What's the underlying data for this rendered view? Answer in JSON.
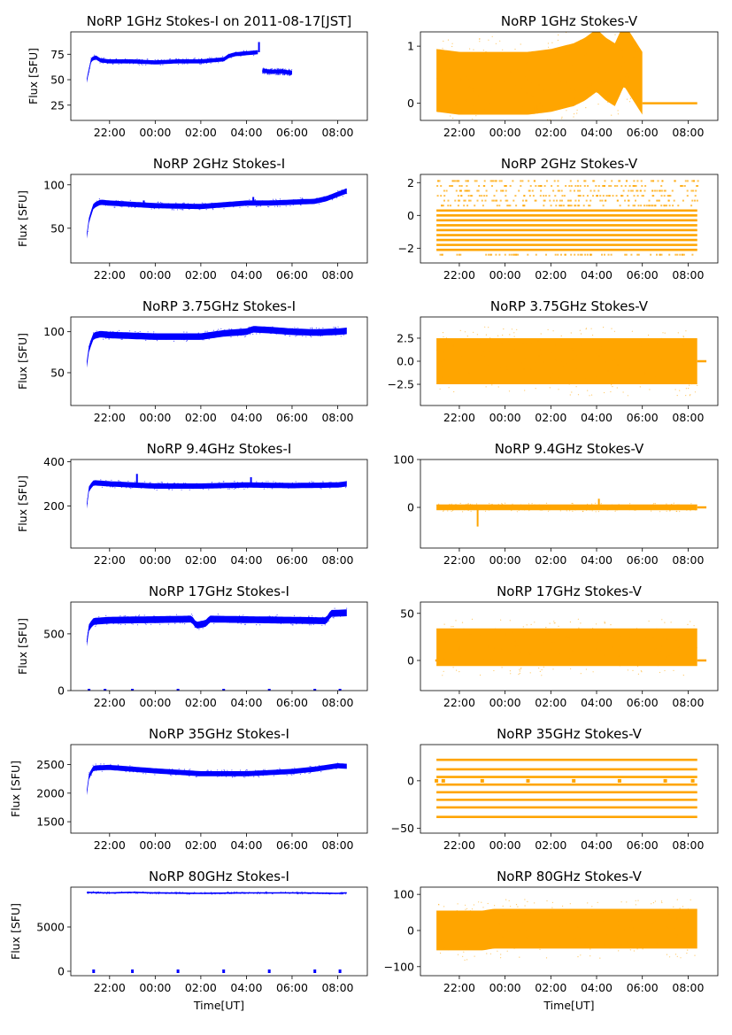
{
  "figure": {
    "x_tick_labels": [
      "22:00",
      "00:00",
      "02:00",
      "04:00",
      "06:00",
      "08:00"
    ],
    "x_tick_hours": [
      22,
      24,
      26,
      28,
      30,
      32
    ],
    "x_range_hours": [
      20.3,
      33.3
    ],
    "data_range_hours": [
      21.0,
      32.4
    ],
    "xlabel": "Time[UT]",
    "ylabel": "Flux [SFU]",
    "colors": {
      "stokes_i": "#0000ff",
      "stokes_v": "#ffa500"
    }
  },
  "chart_data": [
    {
      "type": "scatter",
      "panel": "1ghz-stokes-i",
      "title": "NoRP 1GHz Stokes-I on 2011-08-17[JST]",
      "ylabel": "Flux [SFU]",
      "xlabel": "",
      "ylim": [
        10,
        97
      ],
      "yticks": [
        25,
        50,
        75
      ],
      "ytick_labels": [
        "25",
        "50",
        "75"
      ],
      "series": [
        {
          "name": "trace",
          "x": [
            21.0,
            21.1,
            21.2,
            21.4,
            21.6,
            22,
            23,
            24,
            25,
            26,
            26.5,
            27,
            27.2,
            27.5,
            28,
            28.5
          ],
          "y": [
            49,
            60,
            70,
            72,
            69,
            68,
            68,
            67,
            68,
            68,
            69,
            70,
            73,
            75,
            76,
            77
          ],
          "band": 2
        },
        {
          "name": "trace-late",
          "x": [
            28.7,
            29,
            29.5,
            30
          ],
          "y": [
            59,
            58,
            58,
            57
          ],
          "band": 2
        }
      ],
      "spikes": [
        {
          "x": 28.55,
          "y": 87
        }
      ]
    },
    {
      "type": "scatter",
      "panel": "1ghz-stokes-v",
      "title": "NoRP 1GHz Stokes-V",
      "ylabel": "",
      "xlabel": "",
      "ylim": [
        -0.3,
        1.25
      ],
      "yticks": [
        0,
        1
      ],
      "ytick_labels": [
        "0",
        "1"
      ],
      "series": [
        {
          "name": "trace",
          "x": [
            21.0,
            22,
            23,
            24,
            25,
            26,
            27,
            27.5,
            28,
            28.4,
            28.8,
            29.2,
            29.6,
            30
          ],
          "y": [
            0.4,
            0.35,
            0.35,
            0.35,
            0.35,
            0.4,
            0.5,
            0.6,
            0.75,
            0.6,
            0.5,
            0.85,
            0.6,
            0.35
          ],
          "band": 0.55
        }
      ],
      "flat": [
        {
          "x0": 30.0,
          "x1": 32.4,
          "y": 0.0
        }
      ]
    },
    {
      "type": "scatter",
      "panel": "2ghz-stokes-i",
      "title": "NoRP 2GHz Stokes-I",
      "ylabel": "Flux [SFU]",
      "xlabel": "",
      "ylim": [
        10,
        112
      ],
      "yticks": [
        50,
        100
      ],
      "ytick_labels": [
        "50",
        "100"
      ],
      "series": [
        {
          "name": "trace",
          "x": [
            21.0,
            21.1,
            21.3,
            21.6,
            22,
            24,
            26,
            27,
            28,
            29,
            30,
            31,
            31.5,
            32,
            32.4
          ],
          "y": [
            41,
            60,
            76,
            80,
            79,
            76,
            75,
            77,
            79,
            79,
            80,
            81,
            84,
            89,
            93
          ],
          "band": 3
        }
      ],
      "spikes": [
        {
          "x": 28.3,
          "y": 86
        },
        {
          "x": 23.5,
          "y": 82
        }
      ]
    },
    {
      "type": "scatter",
      "panel": "2ghz-stokes-v",
      "title": "NoRP 2GHz Stokes-V",
      "ylabel": "",
      "xlabel": "",
      "ylim": [
        -2.9,
        2.5
      ],
      "yticks": [
        -2,
        0,
        2
      ],
      "ytick_labels": [
        "−2",
        "0",
        "2"
      ],
      "levels": [
        0.3,
        0.0,
        -0.3,
        -0.6,
        -0.9,
        -1.2,
        -1.5,
        -1.8,
        -2.1
      ],
      "sparse_levels": [
        -2.4,
        0.6,
        0.9,
        1.2,
        1.5,
        1.8,
        2.1
      ]
    },
    {
      "type": "scatter",
      "panel": "3-75ghz-stokes-i",
      "title": "NoRP 3.75GHz Stokes-I",
      "ylabel": "Flux [SFU]",
      "xlabel": "",
      "ylim": [
        10,
        118
      ],
      "yticks": [
        50,
        100
      ],
      "ytick_labels": [
        "50",
        "100"
      ],
      "series": [
        {
          "name": "trace",
          "x": [
            21.0,
            21.1,
            21.3,
            21.6,
            22,
            24,
            26,
            27,
            28,
            28.3,
            29,
            30,
            31,
            32,
            32.4
          ],
          "y": [
            60,
            80,
            95,
            97,
            96,
            94,
            94,
            98,
            100,
            103,
            102,
            100,
            99,
            100,
            101
          ],
          "band": 4
        }
      ]
    },
    {
      "type": "scatter",
      "panel": "3-75ghz-stokes-v",
      "title": "NoRP 3.75GHz Stokes-V",
      "ylabel": "",
      "xlabel": "",
      "ylim": [
        -4.8,
        4.8
      ],
      "yticks": [
        -2.5,
        0,
        2.5
      ],
      "ytick_labels": [
        "−2.5",
        "0.0",
        "2.5"
      ],
      "series": [
        {
          "name": "trace",
          "x": [
            21.0,
            32.4
          ],
          "y": [
            0,
            0
          ],
          "band": 2.5
        }
      ],
      "flat": [
        {
          "x0": 32.4,
          "x1": 32.8,
          "y": 0.0
        }
      ]
    },
    {
      "type": "scatter",
      "panel": "9-4ghz-stokes-i",
      "title": "NoRP 9.4GHz Stokes-I",
      "ylabel": "Flux [SFU]",
      "xlabel": "",
      "ylim": [
        10,
        410
      ],
      "yticks": [
        200,
        400
      ],
      "ytick_labels": [
        "200",
        "400"
      ],
      "series": [
        {
          "name": "trace",
          "x": [
            21.0,
            21.1,
            21.3,
            22,
            24,
            26,
            28,
            30,
            32,
            32.4
          ],
          "y": [
            200,
            280,
            305,
            300,
            290,
            290,
            295,
            292,
            295,
            300
          ],
          "band": 12
        }
      ],
      "spikes": [
        {
          "x": 23.2,
          "y": 345
        },
        {
          "x": 28.2,
          "y": 330
        }
      ]
    },
    {
      "type": "scatter",
      "panel": "9-4ghz-stokes-v",
      "title": "NoRP 9.4GHz Stokes-V",
      "ylabel": "",
      "xlabel": "",
      "ylim": [
        -85,
        100
      ],
      "yticks": [
        0,
        100
      ],
      "ytick_labels": [
        "0",
        "100"
      ],
      "series": [
        {
          "name": "trace",
          "x": [
            21.0,
            32.4
          ],
          "y": [
            0,
            0
          ],
          "band": 6
        }
      ],
      "spikes": [
        {
          "x": 22.8,
          "y": -40
        },
        {
          "x": 28.1,
          "y": 18
        }
      ],
      "flat": [
        {
          "x0": 32.4,
          "x1": 32.8,
          "y": 0.0
        }
      ]
    },
    {
      "type": "scatter",
      "panel": "17ghz-stokes-i",
      "title": "NoRP 17GHz Stokes-I",
      "ylabel": "Flux [SFU]",
      "xlabel": "",
      "ylim": [
        0,
        780
      ],
      "yticks": [
        0,
        500
      ],
      "ytick_labels": [
        "0",
        "500"
      ],
      "series": [
        {
          "name": "trace",
          "x": [
            21.0,
            21.1,
            21.3,
            22,
            24,
            25.6,
            25.8,
            26.2,
            26.4,
            28,
            30,
            31.5,
            31.7,
            32.4
          ],
          "y": [
            420,
            560,
            610,
            620,
            625,
            630,
            575,
            590,
            630,
            625,
            620,
            615,
            680,
            685
          ],
          "band": 30
        }
      ],
      "dots": [
        21.1,
        21.8,
        23.0,
        25.0,
        27.0,
        29.0,
        31.0,
        32.1
      ],
      "dot_y": 0
    },
    {
      "type": "scatter",
      "panel": "17ghz-stokes-v",
      "title": "NoRP 17GHz Stokes-V",
      "ylabel": "",
      "xlabel": "",
      "ylim": [
        -32,
        62
      ],
      "yticks": [
        0,
        50
      ],
      "ytick_labels": [
        "0",
        "50"
      ],
      "series": [
        {
          "name": "trace",
          "x": [
            21.0,
            32.4
          ],
          "y": [
            14,
            14
          ],
          "band": 20
        }
      ],
      "flat": [
        {
          "x0": 20.95,
          "x1": 21.0,
          "y": 0.0
        },
        {
          "x0": 32.4,
          "x1": 32.8,
          "y": 0.0
        }
      ]
    },
    {
      "type": "scatter",
      "panel": "35ghz-stokes-i",
      "title": "NoRP 35GHz Stokes-I",
      "ylabel": "Flux [SFU]",
      "xlabel": "",
      "ylim": [
        1300,
        2850
      ],
      "yticks": [
        1500,
        2000,
        2500
      ],
      "ytick_labels": [
        "1500",
        "2000",
        "2500"
      ],
      "series": [
        {
          "name": "trace",
          "x": [
            21.0,
            21.1,
            21.3,
            22,
            24,
            26,
            28,
            30,
            31,
            32,
            32.4
          ],
          "y": [
            2010,
            2300,
            2440,
            2450,
            2390,
            2340,
            2340,
            2380,
            2420,
            2480,
            2470
          ],
          "band": 45
        }
      ]
    },
    {
      "type": "scatter",
      "panel": "35ghz-stokes-v",
      "title": "NoRP 35GHz Stokes-V",
      "ylabel": "",
      "xlabel": "",
      "ylim": [
        -55,
        38
      ],
      "yticks": [
        -50,
        0
      ],
      "ytick_labels": [
        "−50",
        "0"
      ],
      "levels": [
        22,
        12,
        4,
        -4,
        -12,
        -20,
        -28,
        -38
      ],
      "sparse_levels": [],
      "markers": [
        21.0,
        21.3,
        23.0,
        25.0,
        27.0,
        29.0,
        31.0,
        32.2
      ],
      "marker_y": 0
    },
    {
      "type": "scatter",
      "panel": "80ghz-stokes-i",
      "title": "NoRP 80GHz Stokes-I",
      "ylabel": "Flux [SFU]",
      "xlabel": "Time[UT]",
      "ylim": [
        -500,
        9500
      ],
      "yticks": [
        0,
        5000
      ],
      "ytick_labels": [
        "0",
        "5000"
      ],
      "series": [
        {
          "name": "trace",
          "x": [
            21.0,
            22,
            23,
            24,
            26,
            28,
            30,
            32,
            32.4
          ],
          "y": [
            8900,
            8850,
            8900,
            8850,
            8800,
            8850,
            8850,
            8800,
            8850
          ],
          "band": 80
        }
      ],
      "dots": [
        21.3,
        23.0,
        25.0,
        27.0,
        29.0,
        31.0,
        32.1
      ],
      "dot_y": 0
    },
    {
      "type": "scatter",
      "panel": "80ghz-stokes-v",
      "title": "NoRP 80GHz Stokes-V",
      "ylabel": "",
      "xlabel": "Time[UT]",
      "ylim": [
        -125,
        120
      ],
      "yticks": [
        -100,
        0,
        100
      ],
      "ytick_labels": [
        "−100",
        "0",
        "100"
      ],
      "series": [
        {
          "name": "trace",
          "x": [
            21.0,
            23.0,
            23.5,
            32.4
          ],
          "y": [
            0,
            0,
            5,
            5
          ],
          "band": 55
        }
      ]
    }
  ]
}
